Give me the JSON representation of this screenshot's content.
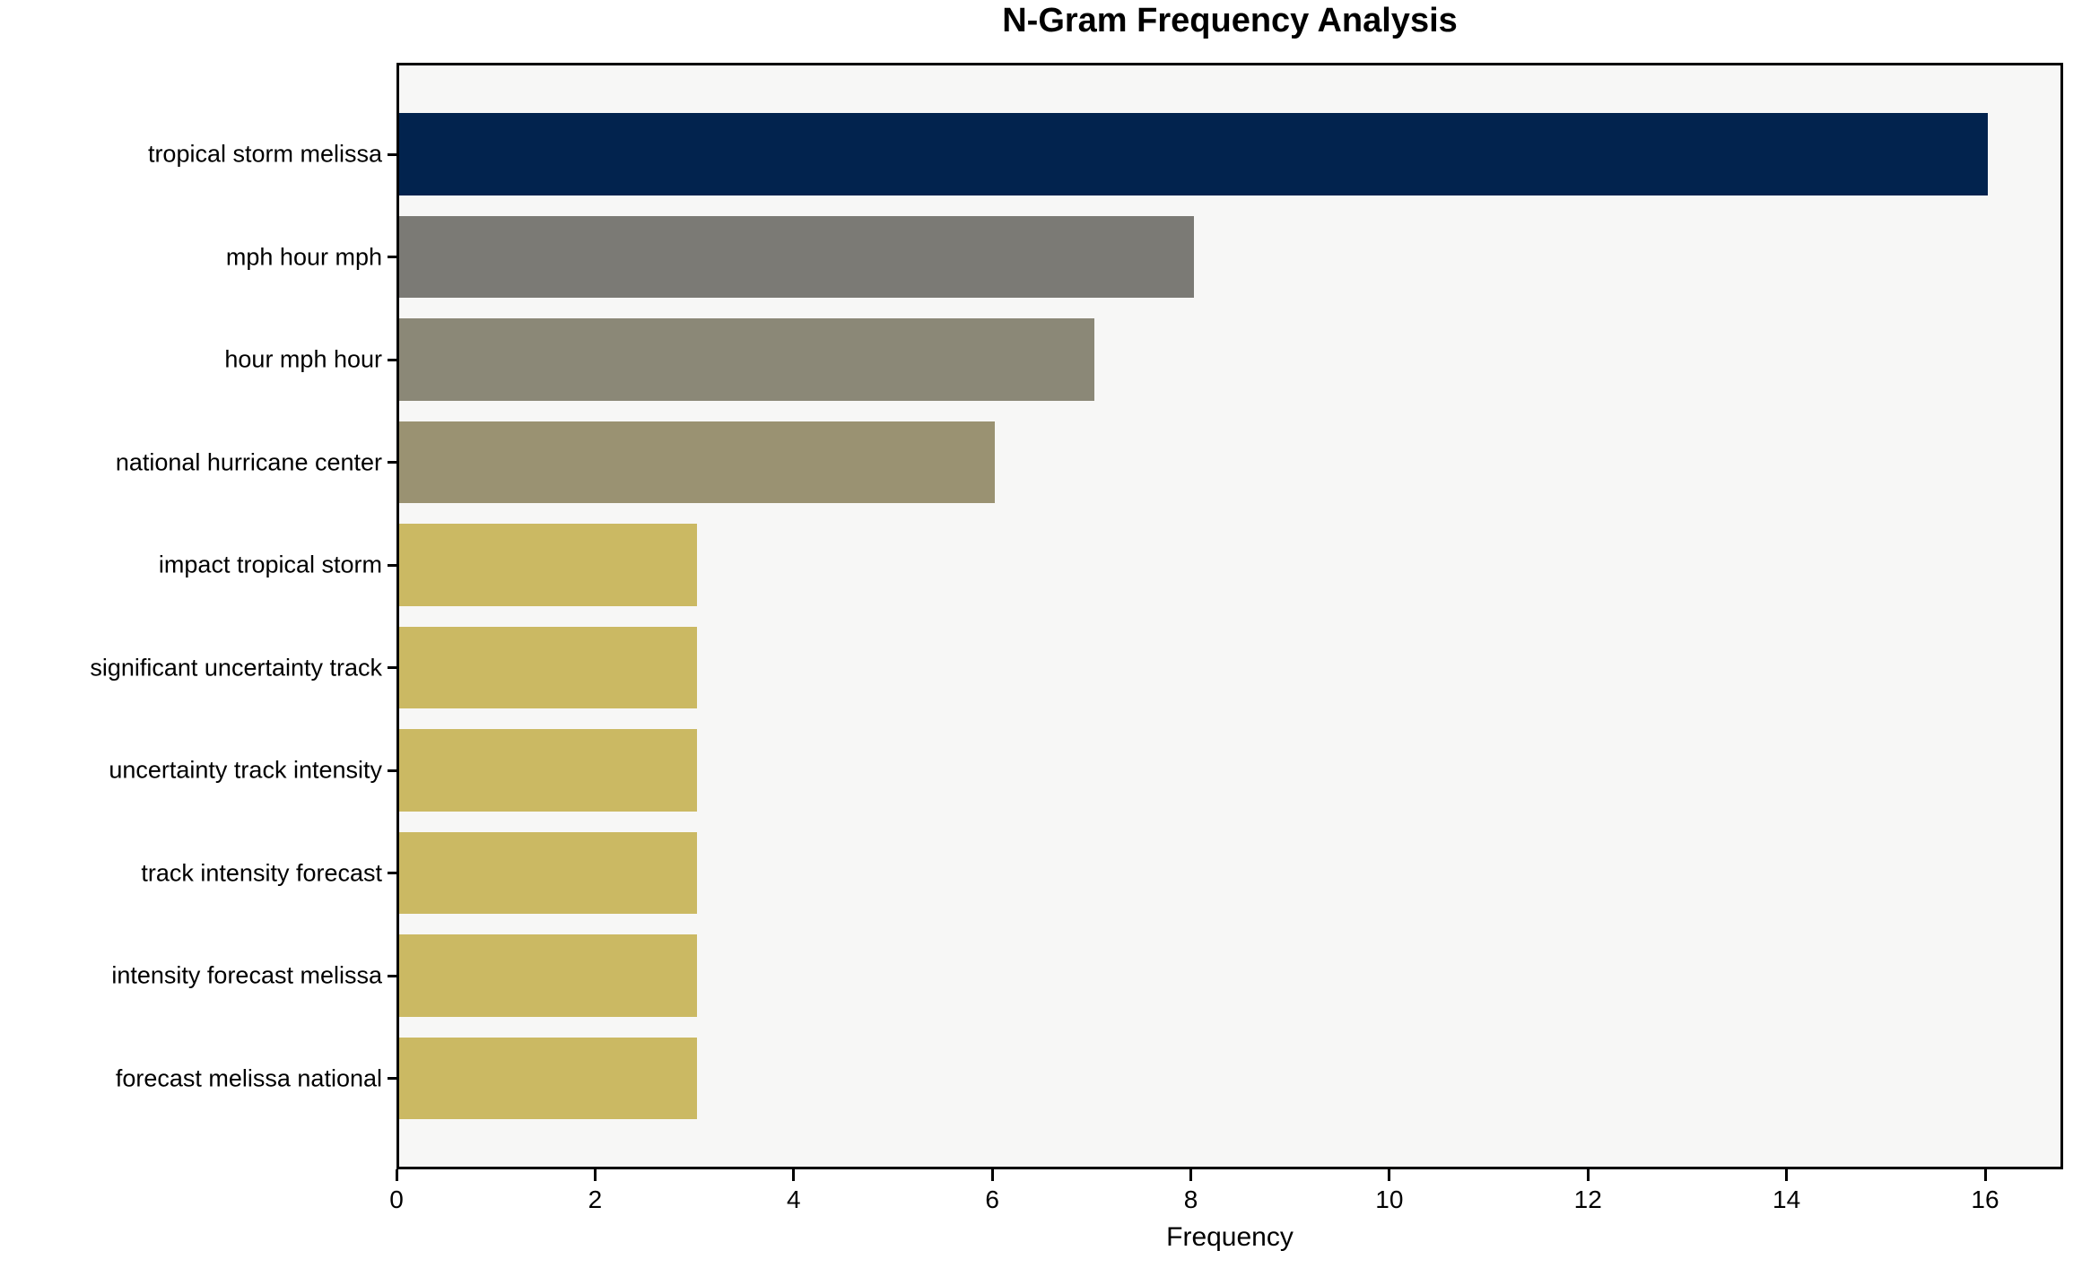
{
  "chart": {
    "title": "N-Gram Frequency Analysis",
    "xlabel": "Frequency"
  },
  "chart_data": {
    "type": "bar",
    "orientation": "horizontal",
    "title": "N-Gram Frequency Analysis",
    "xlabel": "Frequency",
    "ylabel": "",
    "categories": [
      "tropical storm melissa",
      "mph hour mph",
      "hour mph hour",
      "national hurricane center",
      "impact tropical storm",
      "significant uncertainty track",
      "uncertainty track intensity",
      "track intensity forecast",
      "intensity forecast melissa",
      "forecast melissa national"
    ],
    "values": [
      16,
      8,
      7,
      6,
      3,
      3,
      3,
      3,
      3,
      3
    ],
    "bar_colors": [
      "#02234e",
      "#7b7a75",
      "#8b8877",
      "#9a9272",
      "#cbb963",
      "#cbb963",
      "#cbb963",
      "#cbb963",
      "#cbb963",
      "#cbb963"
    ],
    "xlim": [
      0,
      16.8
    ],
    "xticks": [
      0,
      2,
      4,
      6,
      8,
      10,
      12,
      14,
      16
    ],
    "grid": false,
    "legend": null,
    "plot_background": "#f7f7f6",
    "figure_background": "#ffffff"
  }
}
